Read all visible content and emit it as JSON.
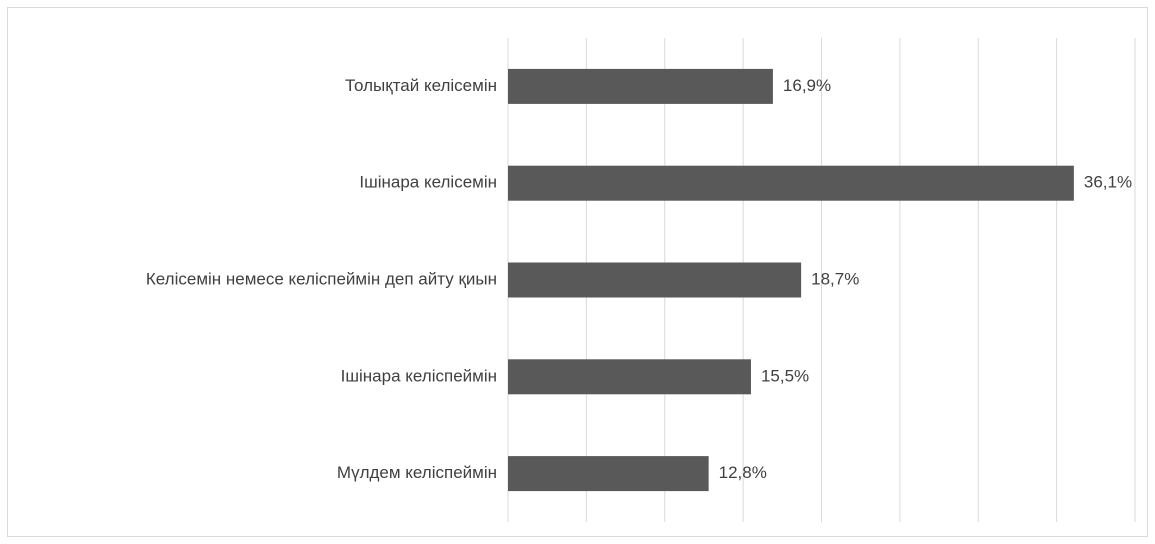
{
  "chart_data": {
    "type": "bar",
    "orientation": "horizontal",
    "categories": [
      "Толықтай келісемін",
      "Ішінара келісемін",
      "Келісемін немесе келіспеймін деп айту қиын",
      "Ішінара келіспеймін",
      "Мүлдем келіспеймін"
    ],
    "values": [
      16.9,
      36.1,
      18.7,
      15.5,
      12.8
    ],
    "value_labels": [
      "16,9%",
      "36,1%",
      "18,7%",
      "15,5%",
      "12,8%"
    ],
    "color": "#595959",
    "xlim": [
      0,
      40
    ],
    "xticks": [
      0,
      5,
      10,
      15,
      20,
      25,
      30,
      35,
      40
    ],
    "grid": true
  }
}
